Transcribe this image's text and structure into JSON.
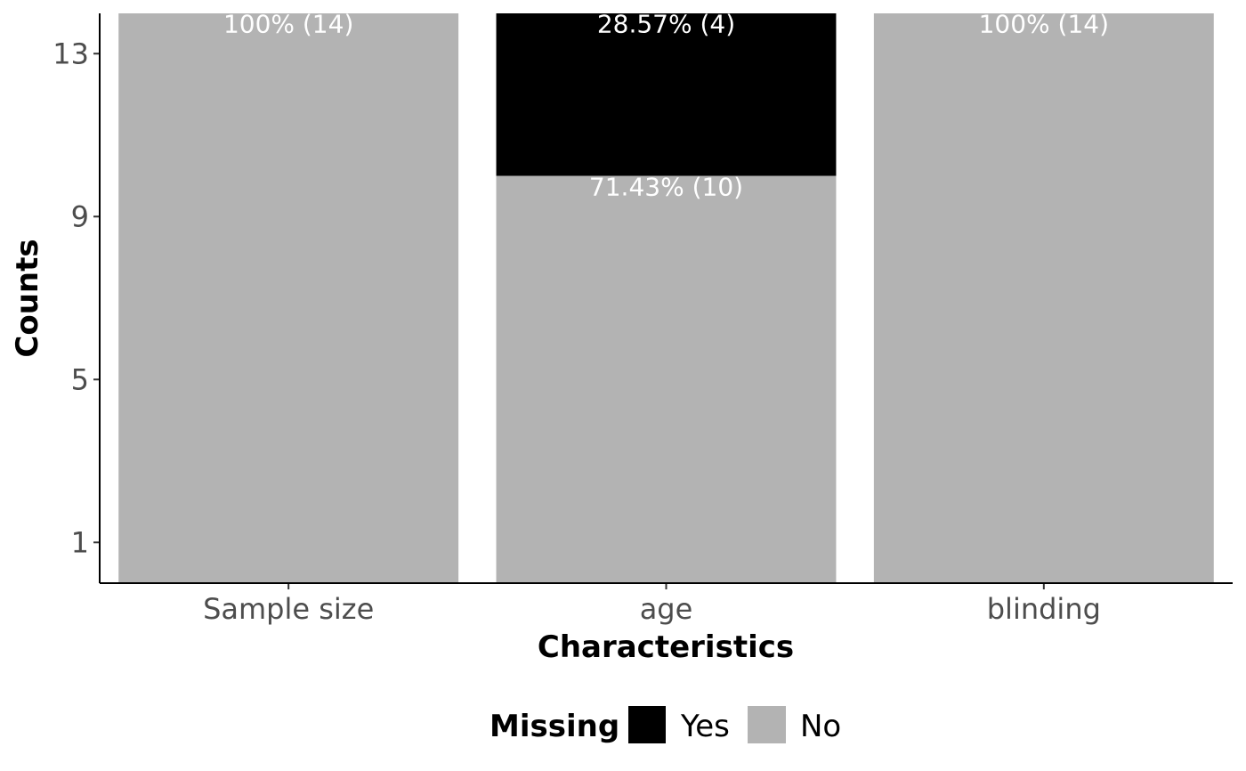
{
  "chart_data": {
    "type": "bar",
    "stacked": true,
    "categories": [
      "Sample size",
      "age",
      "blinding"
    ],
    "series": [
      {
        "name": "No",
        "color": "#b3b3b3",
        "values": [
          14,
          10,
          14
        ],
        "labels": [
          "100% (14)",
          "71.43% (10)",
          "100% (14)"
        ]
      },
      {
        "name": "Yes",
        "color": "#000000",
        "values": [
          0,
          4,
          0
        ],
        "labels": [
          "",
          "28.57% (4)",
          ""
        ]
      }
    ],
    "xlabel": "Characteristics",
    "ylabel": "Counts",
    "yticks": [
      1,
      5,
      9,
      13
    ],
    "ylim": [
      0,
      14
    ],
    "grid": false,
    "legend": {
      "title": "Missing",
      "placement": "bottom",
      "entries": [
        {
          "label": "Yes",
          "color": "#000000"
        },
        {
          "label": "No",
          "color": "#b3b3b3"
        }
      ]
    }
  }
}
